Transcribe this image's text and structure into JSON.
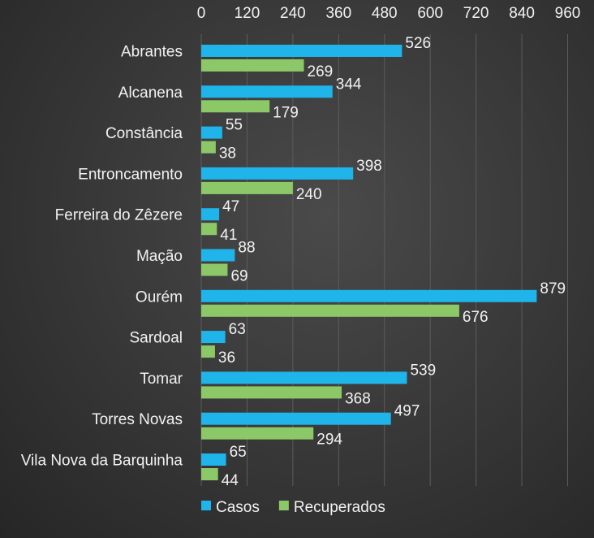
{
  "chart_data": {
    "type": "bar",
    "orientation": "horizontal",
    "categories": [
      "Abrantes",
      "Alcanena",
      "Constância",
      "Entroncamento",
      "Ferreira do Zêzere",
      "Mação",
      "Ourém",
      "Sardoal",
      "Tomar",
      "Torres Novas",
      "Vila Nova da Barquinha"
    ],
    "series": [
      {
        "name": "Casos",
        "color": "#1fb4ea",
        "values": [
          526,
          344,
          55,
          398,
          47,
          88,
          879,
          63,
          539,
          497,
          65
        ]
      },
      {
        "name": "Recuperados",
        "color": "#8cc868",
        "values": [
          269,
          179,
          38,
          240,
          41,
          69,
          676,
          36,
          368,
          294,
          44
        ]
      }
    ],
    "xlim": [
      0,
      960
    ],
    "xticks": [
      0,
      120,
      240,
      360,
      480,
      600,
      720,
      840,
      960
    ],
    "x_axis_position": "top",
    "grid": true,
    "legend": "bottom",
    "title": "",
    "xlabel": "",
    "ylabel": ""
  }
}
